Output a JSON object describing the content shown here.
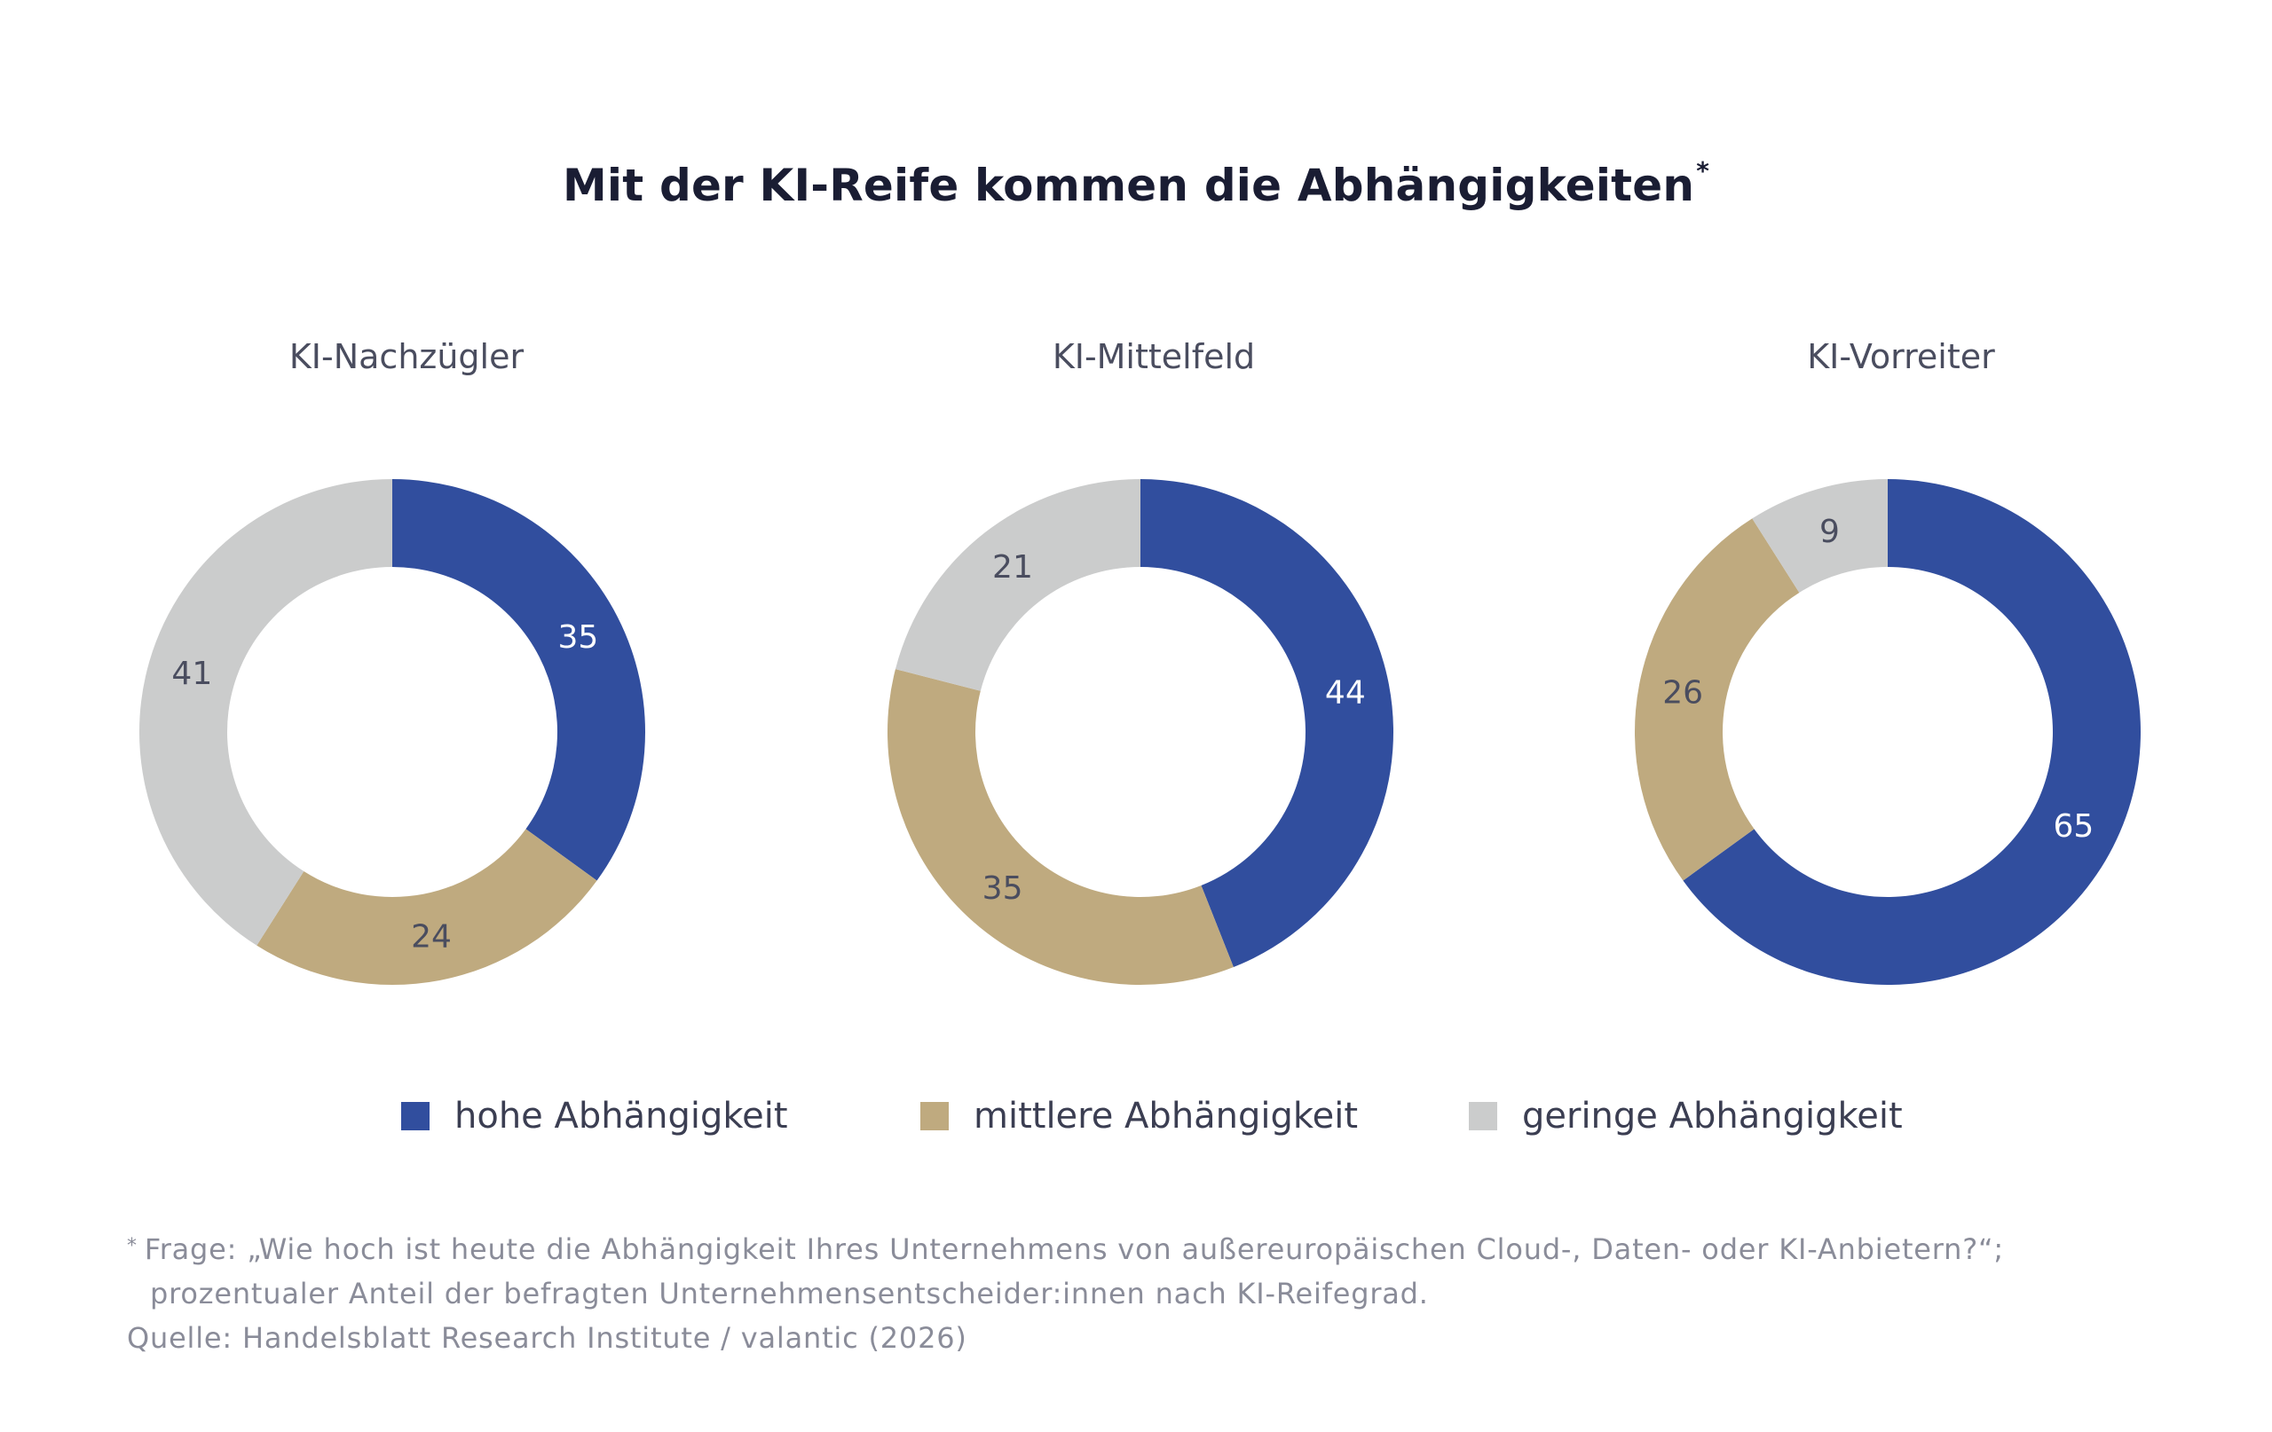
{
  "title": "Mit der KI-Reife kommen die Abhängigkeiten",
  "title_marker": "*",
  "colors": {
    "hohe": "#314e9e",
    "mittlere": "#bfaa7f",
    "geringe": "#cbcccc",
    "label_on_dark": "#ffffff",
    "label_on_light": "#4a4d5f"
  },
  "chart_data": [
    {
      "type": "pie",
      "variant": "donut",
      "title": "KI-Nachzügler",
      "categories": [
        "hohe Abhängigkeit",
        "mittlere Abhängigkeit",
        "geringe Abhängigkeit"
      ],
      "values": [
        35,
        24,
        41
      ]
    },
    {
      "type": "pie",
      "variant": "donut",
      "title": "KI-Mittelfeld",
      "categories": [
        "hohe Abhängigkeit",
        "mittlere Abhängigkeit",
        "geringe Abhängigkeit"
      ],
      "values": [
        44,
        35,
        21
      ]
    },
    {
      "type": "pie",
      "variant": "donut",
      "title": "KI-Vorreiter",
      "categories": [
        "hohe Abhängigkeit",
        "mittlere Abhängigkeit",
        "geringe Abhängigkeit"
      ],
      "values": [
        65,
        26,
        9
      ]
    }
  ],
  "legend": [
    {
      "label": "hohe Abhängigkeit",
      "color": "#314e9e"
    },
    {
      "label": "mittlere Abhängigkeit",
      "color": "#bfaa7f"
    },
    {
      "label": "geringe Abhängigkeit",
      "color": "#cbcccc"
    }
  ],
  "footnote": {
    "marker": "*",
    "line1": "Frage: „Wie hoch ist heute die Abhängigkeit Ihres Unternehmens von außereuropäischen Cloud-, Daten- oder KI-Anbietern?“;",
    "line2": "prozentualer Anteil der befragten Unternehmensentscheider:innen nach KI-Reifegrad.",
    "source": "Quelle: Handelsblatt Research Institute / valantic (2026)"
  }
}
